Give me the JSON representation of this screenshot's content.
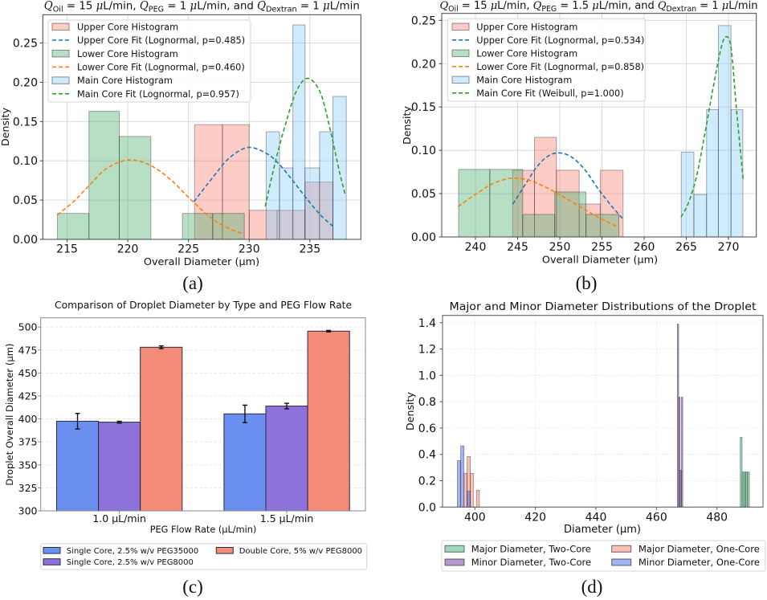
{
  "chart_data": [
    {
      "panel": "a",
      "type": "histogram",
      "title_segments": [
        {
          "text": "Q",
          "style": "italic"
        },
        {
          "text": "Oil",
          "style": "sub"
        },
        {
          "text": " = 15 ",
          "style": "normal"
        },
        {
          "text": "μ",
          "style": "italic"
        },
        {
          "text": "L/min, ",
          "style": "normal"
        },
        {
          "text": "Q",
          "style": "italic"
        },
        {
          "text": "PEG",
          "style": "sub"
        },
        {
          "text": " = 1 ",
          "style": "normal"
        },
        {
          "text": "μ",
          "style": "italic"
        },
        {
          "text": "L/min, and ",
          "style": "normal"
        },
        {
          "text": "Q",
          "style": "italic"
        },
        {
          "text": "Dextran",
          "style": "sub"
        },
        {
          "text": " = 1 ",
          "style": "normal"
        },
        {
          "text": "μ",
          "style": "italic"
        },
        {
          "text": "L/min",
          "style": "normal"
        }
      ],
      "xlabel": "Overall Diameter (µm)",
      "ylabel": "Density",
      "xlim": [
        213.0,
        239.2
      ],
      "ylim": [
        0,
        0.286
      ],
      "xticks": [
        215,
        220,
        225,
        230,
        235
      ],
      "xtick_labels": [
        "215",
        "220",
        "225",
        "230",
        "235"
      ],
      "yticks": [
        0,
        0.05,
        0.1,
        0.15,
        0.2,
        0.25
      ],
      "ytick_labels": [
        "0.00",
        "0.05",
        "0.10",
        "0.15",
        "0.20",
        "0.25"
      ],
      "grid": "both",
      "legend_position": "upper-left",
      "caption": "(a)",
      "series": [
        {
          "name": "Upper Core Histogram",
          "kind": "hist",
          "color": "#fa8072",
          "bin_edges": [
            225.5,
            227.8,
            230.0,
            232.3,
            234.6,
            236.9
          ],
          "values": [
            0.146,
            0.146,
            0.037,
            0.037,
            0.073
          ]
        },
        {
          "name": "Upper Core Fit (Lognormal, p=0.485)",
          "kind": "fit",
          "color": "#1f77b4",
          "distribution": "Lognormal",
          "p_value": 0.485,
          "points": [
            [
              225.45,
              0.048
            ],
            [
              227.06,
              0.08
            ],
            [
              228.39,
              0.104
            ],
            [
              229.93,
              0.117
            ],
            [
              231.47,
              0.109
            ],
            [
              232.57,
              0.094
            ],
            [
              233.68,
              0.073
            ],
            [
              234.78,
              0.051
            ],
            [
              235.88,
              0.031
            ],
            [
              236.87,
              0.017
            ]
          ]
        },
        {
          "name": "Lower Core Histogram",
          "kind": "hist",
          "color": "#4caf6e",
          "bin_edges": [
            214.2,
            216.8,
            219.3,
            221.9,
            224.5,
            227.0,
            229.6
          ],
          "values": [
            0.033,
            0.163,
            0.131,
            0.0,
            0.033,
            0.033
          ]
        },
        {
          "name": "Lower Core Fit (Lognormal, p=0.460)",
          "kind": "fit",
          "color": "#ff7f0e",
          "distribution": "Lognormal",
          "p_value": 0.46,
          "points": [
            [
              214.2,
              0.031
            ],
            [
              215.6,
              0.049
            ],
            [
              216.9,
              0.07
            ],
            [
              218.24,
              0.09
            ],
            [
              220.0,
              0.101
            ],
            [
              221.77,
              0.095
            ],
            [
              223.53,
              0.076
            ],
            [
              225.3,
              0.049
            ],
            [
              227.06,
              0.025
            ],
            [
              228.6,
              0.012
            ],
            [
              229.53,
              0.007
            ]
          ]
        },
        {
          "name": "Main Core Histogram",
          "kind": "hist",
          "color": "#87cefa",
          "bin_edges": [
            231.4,
            232.5,
            233.6,
            234.6,
            235.8,
            236.9,
            238.0
          ],
          "values": [
            0.137,
            0.091,
            0.273,
            0.091,
            0.137,
            0.182
          ]
        },
        {
          "name": "Main Core Fit (Lognormal, p=0.957)",
          "kind": "fit",
          "color": "#2ca02c",
          "distribution": "Lognormal",
          "p_value": 0.957,
          "points": [
            [
              231.32,
              0.042
            ],
            [
              232.13,
              0.097
            ],
            [
              233.02,
              0.148
            ],
            [
              233.9,
              0.189
            ],
            [
              234.84,
              0.205
            ],
            [
              235.88,
              0.186
            ],
            [
              236.76,
              0.134
            ],
            [
              237.42,
              0.087
            ],
            [
              237.93,
              0.056
            ]
          ]
        }
      ]
    },
    {
      "panel": "b",
      "type": "histogram",
      "title_segments": [
        {
          "text": "Q",
          "style": "italic"
        },
        {
          "text": "Oil",
          "style": "sub"
        },
        {
          "text": " = 15 ",
          "style": "normal"
        },
        {
          "text": "μ",
          "style": "italic"
        },
        {
          "text": "L/min, ",
          "style": "normal"
        },
        {
          "text": "Q",
          "style": "italic"
        },
        {
          "text": "PEG",
          "style": "sub"
        },
        {
          "text": " = 1.5 ",
          "style": "normal"
        },
        {
          "text": "μ",
          "style": "italic"
        },
        {
          "text": "L/min, and ",
          "style": "normal"
        },
        {
          "text": "Q",
          "style": "italic"
        },
        {
          "text": "Dextran",
          "style": "sub"
        },
        {
          "text": " = 1 ",
          "style": "normal"
        },
        {
          "text": "μ",
          "style": "italic"
        },
        {
          "text": "L/min",
          "style": "normal"
        }
      ],
      "xlabel": "Overall Diameter (µm)",
      "ylabel": "Density",
      "xlim": [
        236.0,
        273.3
      ],
      "ylim": [
        0,
        0.258
      ],
      "xticks": [
        240,
        245,
        250,
        255,
        260,
        265,
        270
      ],
      "xtick_labels": [
        "240",
        "245",
        "250",
        "255",
        "260",
        "265",
        "270"
      ],
      "yticks": [
        0,
        0.05,
        0.1,
        0.15,
        0.2,
        0.25
      ],
      "ytick_labels": [
        "0.00",
        "0.05",
        "0.10",
        "0.15",
        "0.20",
        "0.25"
      ],
      "grid": "both",
      "legend_position": "upper-left",
      "caption": "(b)",
      "series": [
        {
          "name": "Upper Core Histogram",
          "kind": "hist",
          "color": "#fa8072",
          "bin_edges": [
            244.4,
            247.0,
            249.6,
            252.3,
            254.8,
            257.5
          ],
          "values": [
            0.077,
            0.115,
            0.077,
            0.038,
            0.077
          ]
        },
        {
          "name": "Upper Core Fit (Lognormal, p=0.534)",
          "kind": "fit",
          "color": "#1f77b4",
          "distribution": "Lognormal",
          "p_value": 0.534,
          "points": [
            [
              244.44,
              0.038
            ],
            [
              245.87,
              0.06
            ],
            [
              247.14,
              0.079
            ],
            [
              248.41,
              0.092
            ],
            [
              249.77,
              0.097
            ],
            [
              251.27,
              0.093
            ],
            [
              252.86,
              0.079
            ],
            [
              254.44,
              0.057
            ],
            [
              256.03,
              0.037
            ],
            [
              257.46,
              0.021
            ]
          ]
        },
        {
          "name": "Lower Core Histogram",
          "kind": "hist",
          "color": "#4caf6e",
          "bin_edges": [
            238.0,
            241.7,
            245.6,
            249.4,
            253.1,
            257.0
          ],
          "values": [
            0.078,
            0.078,
            0.026,
            0.052,
            0.026
          ]
        },
        {
          "name": "Lower Core Fit (Lognormal, p=0.858)",
          "kind": "fit",
          "color": "#ff7f0e",
          "distribution": "Lognormal",
          "p_value": 0.858,
          "points": [
            [
              237.93,
              0.035
            ],
            [
              239.84,
              0.048
            ],
            [
              241.74,
              0.06
            ],
            [
              243.33,
              0.066
            ],
            [
              244.76,
              0.068
            ],
            [
              246.5,
              0.065
            ],
            [
              248.41,
              0.057
            ],
            [
              250.31,
              0.047
            ],
            [
              252.22,
              0.036
            ],
            [
              254.12,
              0.025
            ],
            [
              255.71,
              0.017
            ],
            [
              256.98,
              0.011
            ]
          ]
        },
        {
          "name": "Main Core Histogram",
          "kind": "hist",
          "color": "#87cefa",
          "bin_edges": [
            264.4,
            265.9,
            267.4,
            268.8,
            270.3,
            271.7
          ],
          "values": [
            0.098,
            0.049,
            0.147,
            0.244,
            0.147
          ]
        },
        {
          "name": "Main Core Fit (Weibull, p=1.000)",
          "kind": "fit",
          "color": "#2ca02c",
          "distribution": "Weibull",
          "p_value": 1.0,
          "points": [
            [
              264.38,
              0.023
            ],
            [
              265.24,
              0.039
            ],
            [
              266.19,
              0.069
            ],
            [
              267.14,
              0.116
            ],
            [
              268.1,
              0.168
            ],
            [
              269.05,
              0.215
            ],
            [
              269.68,
              0.231
            ],
            [
              270.31,
              0.218
            ],
            [
              270.95,
              0.147
            ],
            [
              271.74,
              0.066
            ]
          ]
        }
      ]
    },
    {
      "panel": "c",
      "type": "bar",
      "title": "Comparison of Droplet Diameter by Type and PEG Flow Rate",
      "xlabel": "PEG Flow Rate (µL/min)",
      "ylabel": "Droplet Overall Diameter (µm)",
      "categories": [
        "1.0 µL/min",
        "1.5 µL/min"
      ],
      "xlim": [
        -0.47,
        1.47
      ],
      "ylim": [
        300,
        510
      ],
      "yticks": [
        300,
        325,
        350,
        375,
        400,
        425,
        450,
        475,
        500
      ],
      "ytick_labels": [
        "300",
        "325",
        "350",
        "375",
        "400",
        "425",
        "450",
        "475",
        "500"
      ],
      "grid": "y",
      "legend_position": "below",
      "caption": "(c)",
      "series": [
        {
          "name": "Single Core, 2.5% w/v PEG35000",
          "kind": "bar",
          "color": "#6b8ff0",
          "values": [
            397.5,
            405.5
          ],
          "errors": [
            8.5,
            9.5
          ]
        },
        {
          "name": "Single Core, 2.5% w/v PEG8000",
          "kind": "bar",
          "color": "#8c72da",
          "values": [
            396.5,
            414.0
          ],
          "errors": [
            1.0,
            3.0
          ]
        },
        {
          "name": "Double Core, 5% w/v PEG8000",
          "kind": "bar",
          "color": "#f48a78",
          "values": [
            478.0,
            495.5
          ],
          "errors": [
            1.5,
            0.8
          ]
        }
      ]
    },
    {
      "panel": "d",
      "type": "histogram",
      "title": "Major and Minor Diameter Distributions of the Droplet",
      "xlabel": "Diameter (µm)",
      "ylabel": "Density",
      "xlim": [
        389.3,
        495.2
      ],
      "ylim": [
        0,
        1.455
      ],
      "xticks": [
        400,
        420,
        440,
        460,
        480
      ],
      "xtick_labels": [
        "400",
        "420",
        "440",
        "460",
        "480"
      ],
      "yticks": [
        0,
        0.2,
        0.4,
        0.6,
        0.8,
        1.0,
        1.2,
        1.4
      ],
      "ytick_labels": [
        "0.0",
        "0.2",
        "0.4",
        "0.6",
        "0.8",
        "1.0",
        "1.2",
        "1.4"
      ],
      "grid": "both",
      "legend_position": "below",
      "caption": "(d)",
      "series": [
        {
          "name": "Major Diameter, Two-Core",
          "kind": "hist",
          "color": "#3cb371",
          "bin_edges": [
            487.7,
            488.3,
            488.9,
            489.5,
            490.1,
            490.7
          ],
          "values": [
            0.53,
            0.266,
            0.266,
            0.266,
            0.266
          ]
        },
        {
          "name": "Minor Diameter, Two-Core",
          "kind": "hist",
          "color": "#663399",
          "bin_edges": [
            466.9,
            467.35,
            467.8,
            468.25,
            468.7
          ],
          "values": [
            1.39,
            0.835,
            0.28,
            0.835
          ]
        },
        {
          "name": "Major Diameter, One-Core",
          "kind": "hist",
          "color": "#fa8072",
          "bin_edges": [
            396.4,
            397.4,
            398.5,
            399.5,
            400.5,
            401.5
          ],
          "values": [
            0.256,
            0.384,
            0.256,
            0.0,
            0.128
          ]
        },
        {
          "name": "Minor Diameter, One-Core",
          "kind": "hist",
          "color": "#4169e1",
          "bin_edges": [
            394.2,
            395.3,
            396.4,
            397.4,
            398.5
          ],
          "values": [
            0.353,
            0.465,
            0.0,
            0.12
          ]
        }
      ]
    }
  ]
}
